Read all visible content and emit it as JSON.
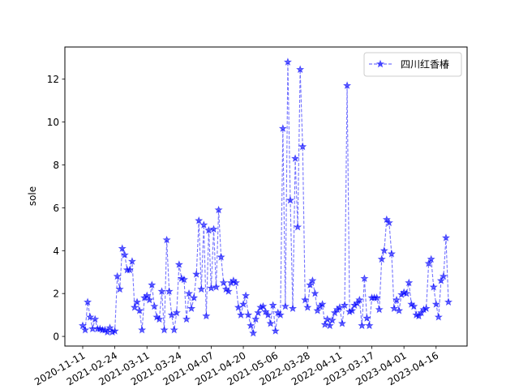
{
  "chart_data": {
    "type": "line",
    "ylabel": "sole",
    "xlabel": "",
    "title": "",
    "ylim": [
      -0.45,
      13.5
    ],
    "yticks": [
      0,
      2,
      4,
      6,
      8,
      10,
      12
    ],
    "x_tick_labels": [
      "2020-11-11",
      "2021-02-24",
      "2021-03-11",
      "2021-03-24",
      "2021-04-07",
      "2021-04-20",
      "2021-05-06",
      "2022-03-28",
      "2022-04-11",
      "2023-03-17",
      "2023-04-01",
      "2023-04-16"
    ],
    "x_tick_positions": [
      0,
      13,
      26,
      39,
      52,
      65,
      78,
      91,
      104,
      117,
      130,
      143
    ],
    "legend_position": "upper right",
    "grid": false,
    "series": [
      {
        "name": "四川红香椿",
        "color": "#0000ff",
        "line_style": "dashed",
        "marker": "star",
        "values": [
          0.5,
          0.3,
          1.6,
          0.9,
          0.35,
          0.8,
          0.35,
          0.35,
          0.3,
          0.3,
          0.2,
          0.4,
          0.2,
          0.25,
          2.8,
          2.2,
          4.1,
          3.8,
          3.1,
          3.1,
          3.5,
          1.35,
          1.6,
          1.2,
          0.3,
          1.8,
          1.9,
          1.7,
          2.4,
          1.4,
          0.9,
          0.8,
          2.1,
          0.3,
          4.5,
          2.1,
          1.0,
          0.3,
          1.1,
          3.35,
          2.7,
          2.65,
          0.8,
          2.0,
          1.3,
          1.8,
          2.9,
          5.4,
          2.2,
          5.2,
          0.95,
          4.95,
          2.25,
          5.0,
          2.3,
          5.9,
          3.7,
          2.5,
          2.2,
          2.1,
          2.5,
          2.6,
          2.5,
          1.35,
          1.0,
          1.5,
          1.9,
          1.0,
          0.5,
          0.15,
          0.8,
          1.1,
          1.35,
          1.4,
          1.15,
          1.0,
          0.6,
          1.45,
          0.25,
          1.1,
          1.0,
          9.7,
          1.4,
          12.8,
          6.35,
          1.3,
          8.3,
          5.1,
          12.45,
          8.85,
          1.7,
          1.35,
          2.4,
          2.6,
          2.0,
          1.2,
          1.4,
          1.5,
          0.55,
          0.8,
          0.5,
          0.75,
          1.1,
          1.25,
          1.35,
          0.6,
          1.45,
          11.7,
          1.15,
          1.2,
          1.45,
          1.55,
          1.7,
          0.5,
          2.7,
          0.85,
          0.5,
          1.8,
          1.8,
          1.8,
          1.25,
          3.6,
          4.0,
          5.45,
          5.3,
          3.85,
          1.3,
          1.7,
          1.2,
          1.95,
          2.05,
          2.0,
          2.5,
          1.5,
          1.4,
          1.0,
          0.95,
          1.1,
          1.25,
          1.3,
          3.4,
          3.6,
          2.3,
          1.5,
          0.9,
          2.6,
          2.8,
          4.6,
          1.6
        ]
      }
    ]
  }
}
